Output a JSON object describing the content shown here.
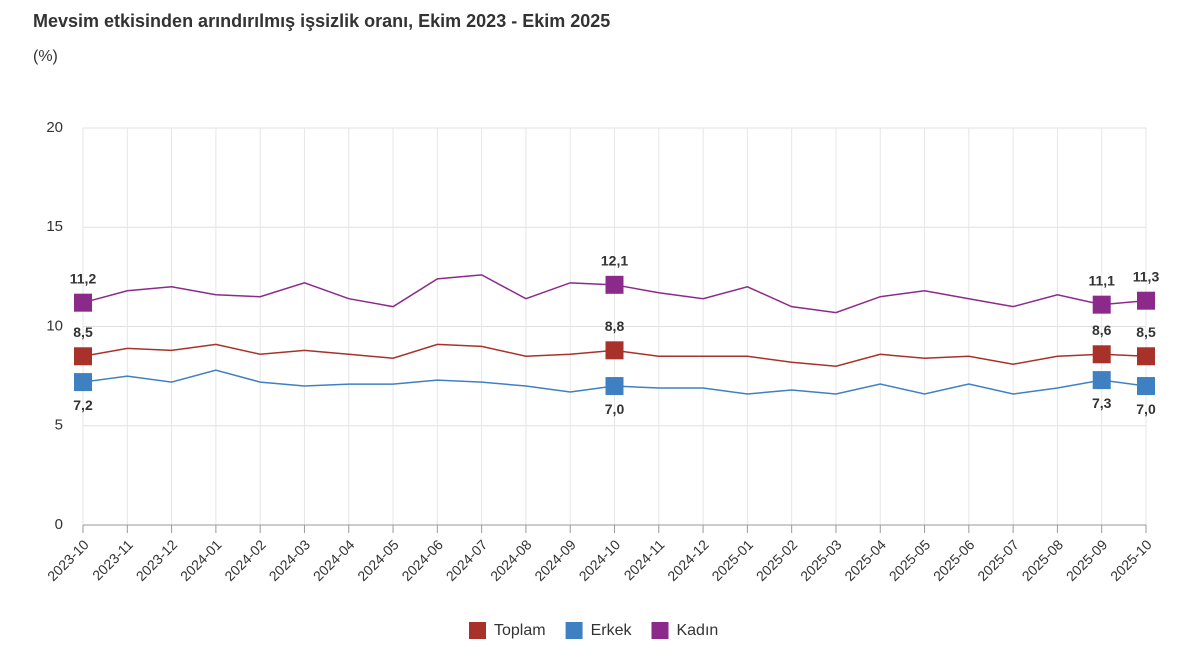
{
  "chart_data": {
    "type": "line",
    "title": "Mevsim etkisinden arındırılmış işsizlik oranı, Ekim 2023 - Ekim 2025",
    "subtitle": "(%)",
    "categories": [
      "2023-10",
      "2023-11",
      "2023-12",
      "2024-01",
      "2024-02",
      "2024-03",
      "2024-04",
      "2024-05",
      "2024-06",
      "2024-07",
      "2024-08",
      "2024-09",
      "2024-10",
      "2024-11",
      "2024-12",
      "2025-01",
      "2025-02",
      "2025-03",
      "2025-04",
      "2025-05",
      "2025-06",
      "2025-07",
      "2025-08",
      "2025-09",
      "2025-10"
    ],
    "series": [
      {
        "name": "Toplam",
        "color": "#a8322a",
        "values": [
          8.5,
          8.9,
          8.8,
          9.1,
          8.6,
          8.8,
          8.6,
          8.4,
          9.1,
          9.0,
          8.5,
          8.6,
          8.8,
          8.5,
          8.5,
          8.5,
          8.2,
          8.0,
          8.6,
          8.4,
          8.5,
          8.1,
          8.5,
          8.6,
          8.5
        ],
        "value_labels": [
          "8,5",
          null,
          null,
          null,
          null,
          null,
          null,
          null,
          null,
          null,
          null,
          null,
          "8,8",
          null,
          null,
          null,
          null,
          null,
          null,
          null,
          null,
          null,
          null,
          "8,6",
          "8,5"
        ]
      },
      {
        "name": "Erkek",
        "color": "#3f80c3",
        "values": [
          7.2,
          7.5,
          7.2,
          7.8,
          7.2,
          7.0,
          7.1,
          7.1,
          7.3,
          7.2,
          7.0,
          6.7,
          7.0,
          6.9,
          6.9,
          6.6,
          6.8,
          6.6,
          7.1,
          6.6,
          7.1,
          6.6,
          6.9,
          7.3,
          7.0
        ],
        "value_labels": [
          "7,2",
          null,
          null,
          null,
          null,
          null,
          null,
          null,
          null,
          null,
          null,
          null,
          "7,0",
          null,
          null,
          null,
          null,
          null,
          null,
          null,
          null,
          null,
          null,
          "7,3",
          "7,0"
        ]
      },
      {
        "name": "Kadın",
        "color": "#8c2a8c",
        "values": [
          11.2,
          11.8,
          12.0,
          11.6,
          11.5,
          12.2,
          11.4,
          11.0,
          12.4,
          12.6,
          11.4,
          12.2,
          12.1,
          11.7,
          11.4,
          12.0,
          11.0,
          10.7,
          11.5,
          11.8,
          11.4,
          11.0,
          11.6,
          11.1,
          11.3
        ],
        "value_labels": [
          "11,2",
          null,
          null,
          null,
          null,
          null,
          null,
          null,
          null,
          null,
          null,
          null,
          "12,1",
          null,
          null,
          null,
          null,
          null,
          null,
          null,
          null,
          null,
          null,
          "11,1",
          "11,3"
        ]
      }
    ],
    "ylim": [
      0,
      20
    ],
    "yticks": [
      0,
      5,
      10,
      15,
      20
    ],
    "grid": true,
    "legend": "bottom"
  }
}
